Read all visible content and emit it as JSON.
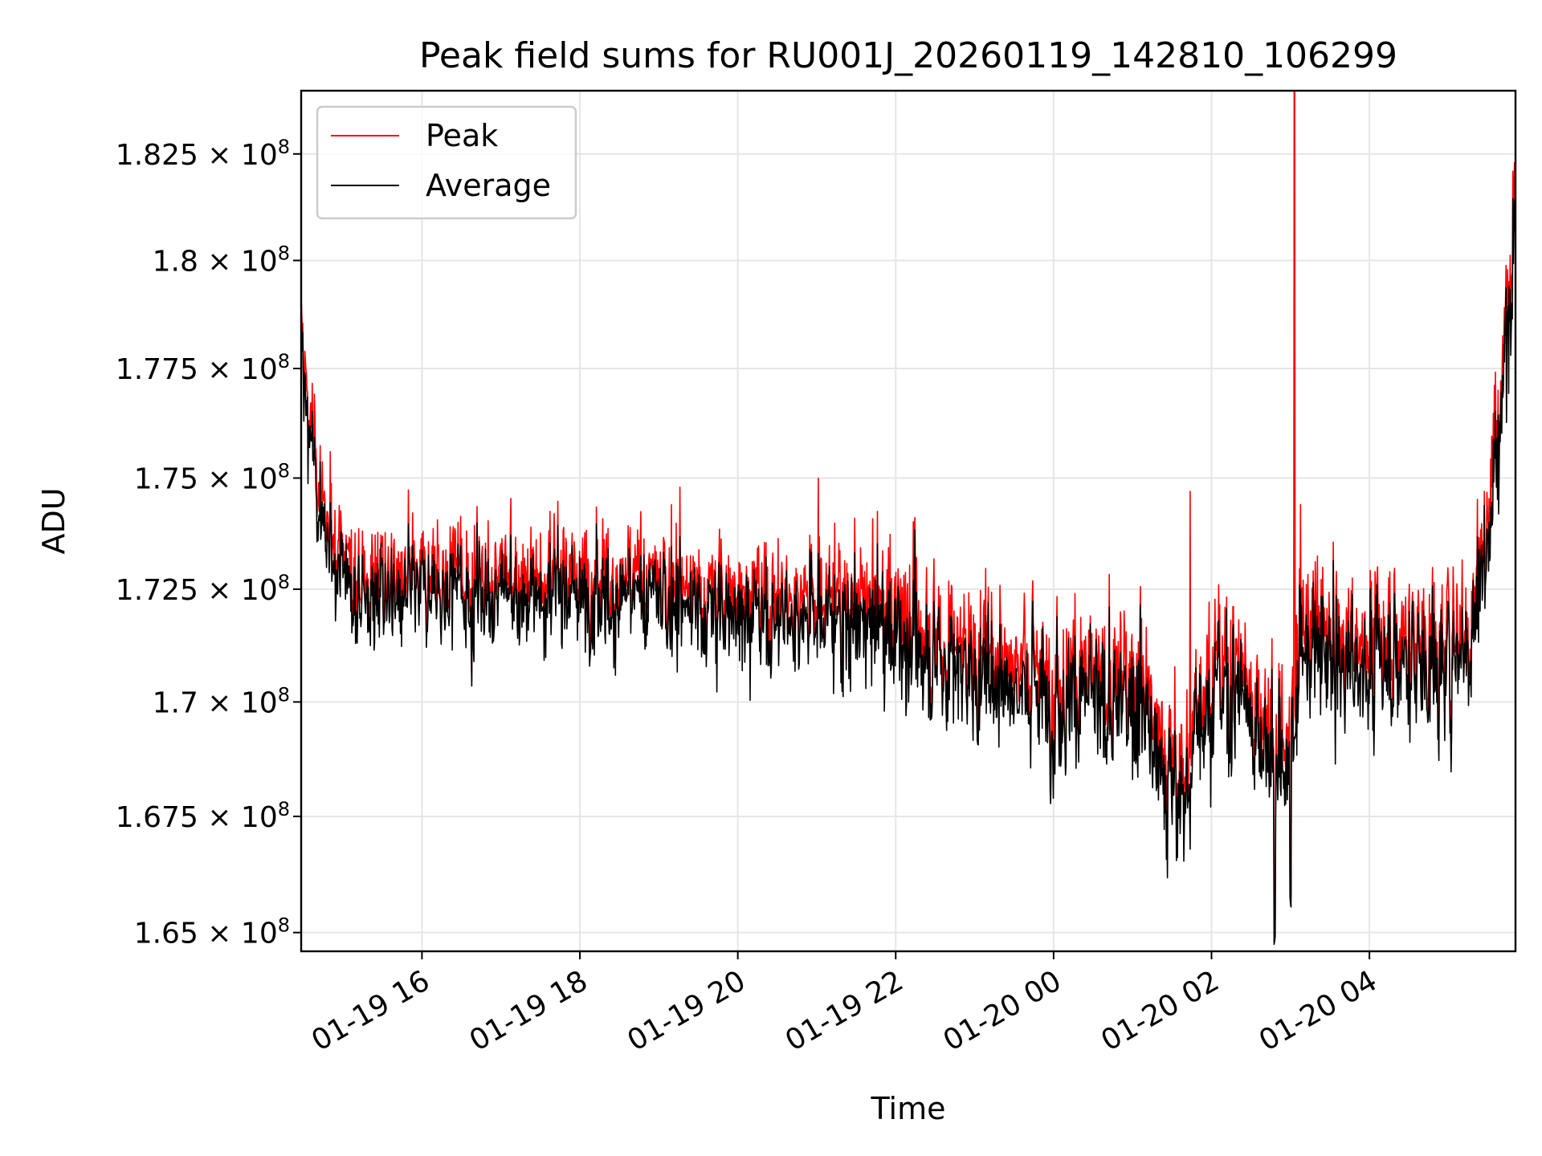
{
  "chart_data": {
    "type": "line",
    "title": "Peak field sums for RU001J_20260119_142810_106299",
    "xlabel": "Time",
    "ylabel": "ADU",
    "x_range_hours_since_2026_01_19_00_00": [
      14.47,
      29.85
    ],
    "ylim": [
      164600000,
      184000000
    ],
    "yscale": "log",
    "x_ticks": [
      {
        "hours": 16,
        "label": "01-19 16"
      },
      {
        "hours": 18,
        "label": "01-19 18"
      },
      {
        "hours": 20,
        "label": "01-19 20"
      },
      {
        "hours": 22,
        "label": "01-19 22"
      },
      {
        "hours": 24,
        "label": "01-20 00"
      },
      {
        "hours": 26,
        "label": "01-20 02"
      },
      {
        "hours": 28,
        "label": "01-20 04"
      }
    ],
    "y_ticks": [
      {
        "value": 165000000,
        "mantissa": "1.65"
      },
      {
        "value": 167500000,
        "mantissa": "1.675"
      },
      {
        "value": 170000000,
        "mantissa": "1.7"
      },
      {
        "value": 172500000,
        "mantissa": "1.725"
      },
      {
        "value": 175000000,
        "mantissa": "1.75"
      },
      {
        "value": 177500000,
        "mantissa": "1.775"
      },
      {
        "value": 180000000,
        "mantissa": "1.8"
      },
      {
        "value": 182500000,
        "mantissa": "1.825"
      }
    ],
    "tick_base": "10",
    "tick_exponent": "8",
    "grid": true,
    "legend_position": "top-left",
    "legend": [
      {
        "name": "Peak",
        "color": "#ff0000"
      },
      {
        "name": "Average",
        "color": "#000000"
      }
    ],
    "trend_points": [
      {
        "h": 14.47,
        "v": 178000000
      },
      {
        "h": 14.6,
        "v": 175500000
      },
      {
        "h": 14.8,
        "v": 173200000
      },
      {
        "h": 15.2,
        "v": 172300000
      },
      {
        "h": 16.0,
        "v": 172300000
      },
      {
        "h": 17.0,
        "v": 172300000
      },
      {
        "h": 18.0,
        "v": 172400000
      },
      {
        "h": 19.0,
        "v": 172300000
      },
      {
        "h": 20.0,
        "v": 171900000
      },
      {
        "h": 21.0,
        "v": 171900000
      },
      {
        "h": 22.0,
        "v": 171500000
      },
      {
        "h": 23.0,
        "v": 170600000
      },
      {
        "h": 24.0,
        "v": 170200000
      },
      {
        "h": 25.0,
        "v": 170000000
      },
      {
        "h": 25.2,
        "v": 169200000
      },
      {
        "h": 25.5,
        "v": 168000000
      },
      {
        "h": 25.75,
        "v": 168000000
      },
      {
        "h": 25.8,
        "v": 169800000
      },
      {
        "h": 26.5,
        "v": 170100000
      },
      {
        "h": 26.8,
        "v": 168500000
      },
      {
        "h": 27.0,
        "v": 168500000
      },
      {
        "h": 27.1,
        "v": 170800000
      },
      {
        "h": 28.0,
        "v": 170800000
      },
      {
        "h": 29.0,
        "v": 170800000
      },
      {
        "h": 29.3,
        "v": 171500000
      },
      {
        "h": 29.5,
        "v": 173500000
      },
      {
        "h": 29.7,
        "v": 177000000
      },
      {
        "h": 29.85,
        "v": 181500000
      }
    ],
    "noise_amplitude": [
      {
        "h": 14.47,
        "a": 1200000
      },
      {
        "h": 20.0,
        "a": 1400000
      },
      {
        "h": 23.0,
        "a": 1600000
      },
      {
        "h": 29.85,
        "a": 1800000
      }
    ],
    "spikes_peak": [
      {
        "h": 21.02,
        "v": 175000000
      },
      {
        "h": 25.73,
        "v": 174700000
      },
      {
        "h": 27.05,
        "v": 184000000
      }
    ],
    "dips_average": [
      {
        "h": 26.8,
        "v": 164700000
      },
      {
        "h": 27.0,
        "v": 165500000
      }
    ],
    "sample_count": 2300
  }
}
